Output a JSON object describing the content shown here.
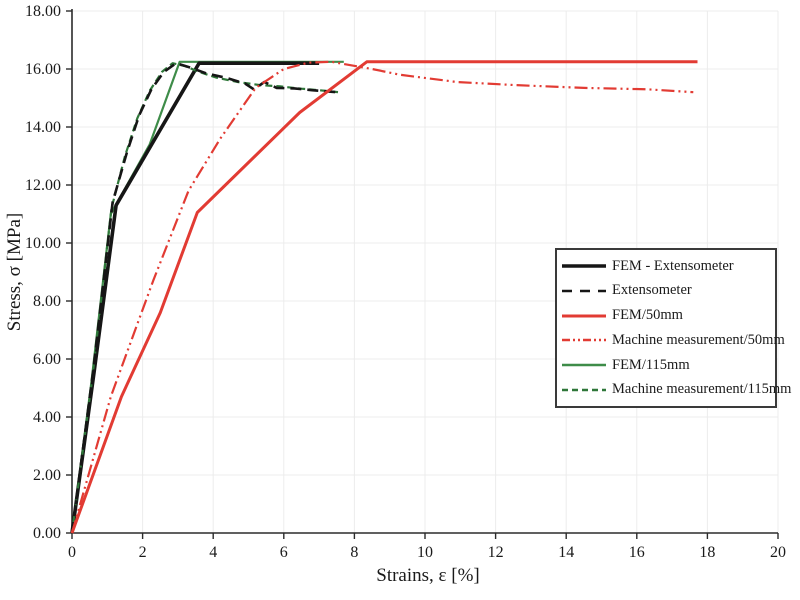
{
  "chart_data": {
    "type": "line",
    "title": "",
    "xlabel": "Strains, ε [%]",
    "ylabel": "Stress, σ [MPa]",
    "xlim": [
      0,
      20
    ],
    "ylim": [
      0,
      18
    ],
    "xticks": {
      "values": [
        0,
        2,
        4,
        6,
        8,
        10,
        12,
        14,
        16,
        18,
        20
      ],
      "labels": [
        "0",
        "2",
        "4",
        "6",
        "8",
        "10",
        "12",
        "14",
        "16",
        "18",
        "20"
      ]
    },
    "yticks": {
      "values": [
        0,
        2,
        4,
        6,
        8,
        10,
        12,
        14,
        16,
        18
      ],
      "labels": [
        "0.00",
        "2.00",
        "4.00",
        "6.00",
        "8.00",
        "10.00",
        "12.00",
        "14.00",
        "16.00",
        "18.00"
      ]
    },
    "grid": true,
    "grid_color": "#ececec",
    "axis_color": "#2b2b2b",
    "legend_position": "middle-right",
    "series": [
      {
        "name": "FEM - Extensometer",
        "color": "#161616",
        "width": 3.6,
        "dash": "",
        "legend_dash": "",
        "points": [
          [
            0,
            0
          ],
          [
            0.62,
            5.5
          ],
          [
            1.25,
            11.3
          ],
          [
            3.6,
            16.2
          ],
          [
            7.0,
            16.2
          ]
        ]
      },
      {
        "name": "Extensometer",
        "color": "#161616",
        "width": 2.6,
        "dash": "11 6",
        "legend_dash": "10 8",
        "points": [
          [
            0,
            0
          ],
          [
            0.6,
            5.6
          ],
          [
            1.15,
            11.4
          ],
          [
            1.55,
            13.1
          ],
          [
            1.9,
            14.4
          ],
          [
            2.25,
            15.3
          ],
          [
            2.6,
            15.9
          ],
          [
            2.95,
            16.2
          ],
          [
            3.35,
            16.05
          ],
          [
            3.8,
            15.85
          ],
          [
            4.35,
            15.7
          ],
          [
            4.9,
            15.5
          ],
          [
            5.15,
            15.3
          ],
          [
            5.45,
            15.55
          ],
          [
            5.8,
            15.35
          ],
          [
            6.3,
            15.33
          ],
          [
            6.8,
            15.27
          ],
          [
            7.5,
            15.2
          ]
        ]
      },
      {
        "name": "FEM/50mm",
        "color": "#e23b33",
        "width": 3.0,
        "dash": "",
        "legend_dash": "",
        "points": [
          [
            0,
            0
          ],
          [
            1.4,
            4.7
          ],
          [
            2.5,
            7.6
          ],
          [
            3.55,
            11.05
          ],
          [
            6.45,
            14.5
          ],
          [
            8.35,
            16.25
          ],
          [
            17.72,
            16.25
          ]
        ]
      },
      {
        "name": "Machine measurement/50mm",
        "color": "#e23b33",
        "width": 2.2,
        "dash": "13 4 2 4 2 4",
        "legend_dash": "8 3 2 3 2 3",
        "points": [
          [
            0,
            0
          ],
          [
            1.1,
            4.7
          ],
          [
            2.3,
            8.7
          ],
          [
            3.3,
            11.8
          ],
          [
            4.2,
            13.6
          ],
          [
            5.2,
            15.35
          ],
          [
            6.0,
            16.0
          ],
          [
            6.7,
            16.22
          ],
          [
            7.35,
            16.25
          ],
          [
            8.5,
            16.0
          ],
          [
            9.3,
            15.8
          ],
          [
            10.9,
            15.55
          ],
          [
            12.5,
            15.45
          ],
          [
            14.5,
            15.35
          ],
          [
            16.3,
            15.3
          ],
          [
            17.6,
            15.2
          ]
        ]
      },
      {
        "name": "FEM/115mm",
        "color": "#3e8c49",
        "width": 2.2,
        "dash": "",
        "legend_dash": "",
        "points": [
          [
            0,
            0
          ],
          [
            0.55,
            5.2
          ],
          [
            1.1,
            11.0
          ],
          [
            2.2,
            13.4
          ],
          [
            3.05,
            16.25
          ],
          [
            7.7,
            16.25
          ]
        ]
      },
      {
        "name": "Machine measurement/115mm",
        "color": "#2e7739",
        "width": 2.2,
        "dash": "7 4",
        "legend_dash": "6 4",
        "points": [
          [
            0,
            0
          ],
          [
            0.58,
            5.4
          ],
          [
            1.12,
            11.2
          ],
          [
            1.5,
            13.0
          ],
          [
            1.85,
            14.3
          ],
          [
            2.2,
            15.25
          ],
          [
            2.55,
            15.9
          ],
          [
            2.85,
            16.2
          ],
          [
            3.2,
            16.1
          ],
          [
            3.6,
            15.9
          ],
          [
            4.1,
            15.7
          ],
          [
            4.7,
            15.55
          ],
          [
            5.3,
            15.45
          ],
          [
            5.9,
            15.4
          ],
          [
            6.5,
            15.32
          ],
          [
            7.0,
            15.27
          ],
          [
            7.55,
            15.2
          ]
        ]
      }
    ]
  }
}
